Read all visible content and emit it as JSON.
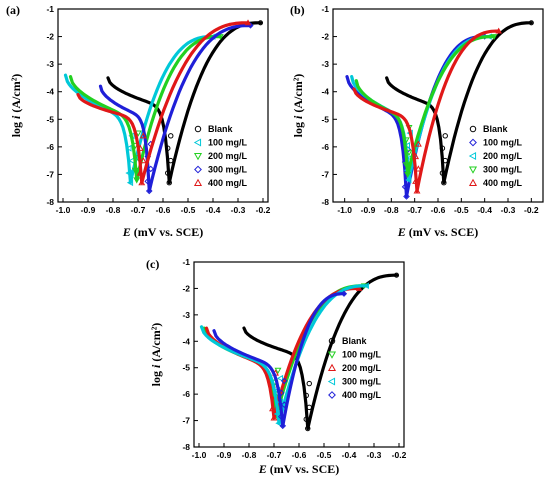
{
  "chart_data": [
    {
      "type": "line",
      "panel_label": "(a)",
      "xlabel_italic": "E",
      "xlabel_rest": " (mV vs. SCE)",
      "ylabel_text": "log ",
      "ylabel_italic": "i",
      "ylabel_unit": " (A/cm²)",
      "xlim": [
        -1.02,
        -0.18
      ],
      "ylim": [
        -8,
        -1
      ],
      "xticks": [
        -1.0,
        -0.9,
        -0.8,
        -0.7,
        -0.6,
        -0.5,
        -0.4,
        -0.3,
        -0.2
      ],
      "xtick_labels": [
        "-1.0",
        "-0.9",
        "-0.8",
        "-0.7",
        "-0.6",
        "-0.5",
        "-0.4",
        "-0.3",
        "-0.2"
      ],
      "yticks": [
        -8,
        -7,
        -6,
        -5,
        -4,
        -3,
        -2,
        -1
      ],
      "ytick_labels": [
        "-8",
        "-7",
        "-6",
        "-5",
        "-4",
        "-3",
        "-2",
        "-1"
      ],
      "legend_position": "bottom-right",
      "series": [
        {
          "name": "Blank",
          "color": "#000000",
          "marker": "circle",
          "ecorr": -0.575,
          "icorr": -4.6,
          "cath_start": [
            -0.82,
            -3.5
          ],
          "anod_end": [
            -0.21,
            -1.5
          ],
          "spike": -7.3
        },
        {
          "name": "100 mg/L",
          "color": "#00c8d8",
          "marker": "tri-left",
          "ecorr": -0.73,
          "icorr": -5.0,
          "cath_start": [
            -0.99,
            -3.4
          ],
          "anod_end": [
            -0.4,
            -2.0
          ],
          "spike": -7.3
        },
        {
          "name": "200 mg/L",
          "color": "#22d020",
          "marker": "tri-down",
          "ecorr": -0.705,
          "icorr": -5.0,
          "cath_start": [
            -0.97,
            -3.45
          ],
          "anod_end": [
            -0.37,
            -2.0
          ],
          "spike": -7.2
        },
        {
          "name": "300 mg/L",
          "color": "#1f1fd8",
          "marker": "diamond",
          "ecorr": -0.655,
          "icorr": -5.0,
          "cath_start": [
            -0.85,
            -3.8
          ],
          "anod_end": [
            -0.25,
            -1.6
          ],
          "spike": -7.6
        },
        {
          "name": "400 mg/L",
          "color": "#e01818",
          "marker": "tri-up",
          "ecorr": -0.685,
          "icorr": -5.0,
          "cath_start": [
            -0.94,
            -4.1
          ],
          "anod_end": [
            -0.26,
            -1.5
          ],
          "spike": -7.3
        }
      ]
    },
    {
      "type": "line",
      "panel_label": "(b)",
      "xlabel_italic": "E",
      "xlabel_rest": " (mV vs. SCE)",
      "ylabel_text": "log ",
      "ylabel_italic": "i",
      "ylabel_unit": " (A/cm²)",
      "xlim": [
        -1.05,
        -0.15
      ],
      "ylim": [
        -8,
        -1
      ],
      "xticks": [
        -1.0,
        -0.9,
        -0.8,
        -0.7,
        -0.6,
        -0.5,
        -0.4,
        -0.3,
        -0.2
      ],
      "xtick_labels": [
        "-1.0",
        "-0.9",
        "-0.8",
        "-0.7",
        "-0.6",
        "-0.5",
        "-0.4",
        "-0.3",
        "-0.2"
      ],
      "yticks": [
        -8,
        -7,
        -6,
        -5,
        -4,
        -3,
        -2,
        -1
      ],
      "ytick_labels": [
        "-8",
        "-7",
        "-6",
        "-5",
        "-4",
        "-3",
        "-2",
        "-1"
      ],
      "legend_position": "bottom-right",
      "series": [
        {
          "name": "Blank",
          "color": "#000000",
          "marker": "circle",
          "ecorr": -0.575,
          "icorr": -4.6,
          "cath_start": [
            -0.82,
            -3.5
          ],
          "anod_end": [
            -0.2,
            -1.5
          ],
          "spike": -7.3
        },
        {
          "name": "100 mg/L",
          "color": "#1f1fd8",
          "marker": "diamond",
          "ecorr": -0.735,
          "icorr": -5.0,
          "cath_start": [
            -0.99,
            -3.45
          ],
          "anod_end": [
            -0.4,
            -2.0
          ],
          "spike": -7.8
        },
        {
          "name": "200 mg/L",
          "color": "#00c8d8",
          "marker": "tri-left",
          "ecorr": -0.725,
          "icorr": -5.0,
          "cath_start": [
            -0.97,
            -3.45
          ],
          "anod_end": [
            -0.38,
            -2.0
          ],
          "spike": -7.2
        },
        {
          "name": "300 mg/L",
          "color": "#22d020",
          "marker": "tri-down",
          "ecorr": -0.73,
          "icorr": -5.0,
          "cath_start": [
            -0.95,
            -3.6
          ],
          "anod_end": [
            -0.36,
            -2.0
          ],
          "spike": -7.0
        },
        {
          "name": "400 mg/L",
          "color": "#e01818",
          "marker": "tri-up",
          "ecorr": -0.69,
          "icorr": -5.0,
          "cath_start": [
            -0.96,
            -3.9
          ],
          "anod_end": [
            -0.34,
            -1.8
          ],
          "spike": -7.6
        }
      ]
    },
    {
      "type": "line",
      "panel_label": "(c)",
      "xlabel_italic": "E",
      "xlabel_rest": " (mV vs. SCE)",
      "ylabel_text": "log ",
      "ylabel_italic": "i",
      "ylabel_unit": " (A/cm²)",
      "xlim": [
        -1.02,
        -0.18
      ],
      "ylim": [
        -8,
        -1
      ],
      "xticks": [
        -1.0,
        -0.9,
        -0.8,
        -0.7,
        -0.6,
        -0.5,
        -0.4,
        -0.3,
        -0.2
      ],
      "xtick_labels": [
        "-1.0",
        "-0.9",
        "-0.8",
        "-0.7",
        "-0.6",
        "-0.5",
        "-0.4",
        "-0.3",
        "-0.2"
      ],
      "yticks": [
        -8,
        -7,
        -6,
        -5,
        -4,
        -3,
        -2,
        -1
      ],
      "ytick_labels": [
        "-8",
        "-7",
        "-6",
        "-5",
        "-4",
        "-3",
        "-2",
        "-1"
      ],
      "legend_position": "bottom-right",
      "series": [
        {
          "name": "Blank",
          "color": "#000000",
          "marker": "circle",
          "ecorr": -0.565,
          "icorr": -4.6,
          "cath_start": [
            -0.82,
            -3.5
          ],
          "anod_end": [
            -0.21,
            -1.5
          ],
          "spike": -7.3
        },
        {
          "name": "100 mg/L",
          "color": "#22d020",
          "marker": "tri-down",
          "ecorr": -0.69,
          "icorr": -5.0,
          "cath_start": [
            -0.98,
            -3.5
          ],
          "anod_end": [
            -0.34,
            -1.9
          ],
          "spike": -6.8
        },
        {
          "name": "200 mg/L",
          "color": "#e01818",
          "marker": "tri-up",
          "ecorr": -0.7,
          "icorr": -5.0,
          "cath_start": [
            -0.97,
            -3.5
          ],
          "anod_end": [
            -0.36,
            -2.0
          ],
          "spike": -6.9
        },
        {
          "name": "300 mg/L",
          "color": "#00c8d8",
          "marker": "tri-left",
          "ecorr": -0.68,
          "icorr": -5.0,
          "cath_start": [
            -0.99,
            -3.45
          ],
          "anod_end": [
            -0.33,
            -1.9
          ],
          "spike": -7.1
        },
        {
          "name": "400 mg/L",
          "color": "#1f1fd8",
          "marker": "diamond",
          "ecorr": -0.665,
          "icorr": -5.0,
          "cath_start": [
            -0.94,
            -3.6
          ],
          "anod_end": [
            -0.42,
            -2.2
          ],
          "spike": -7.2
        }
      ]
    }
  ]
}
